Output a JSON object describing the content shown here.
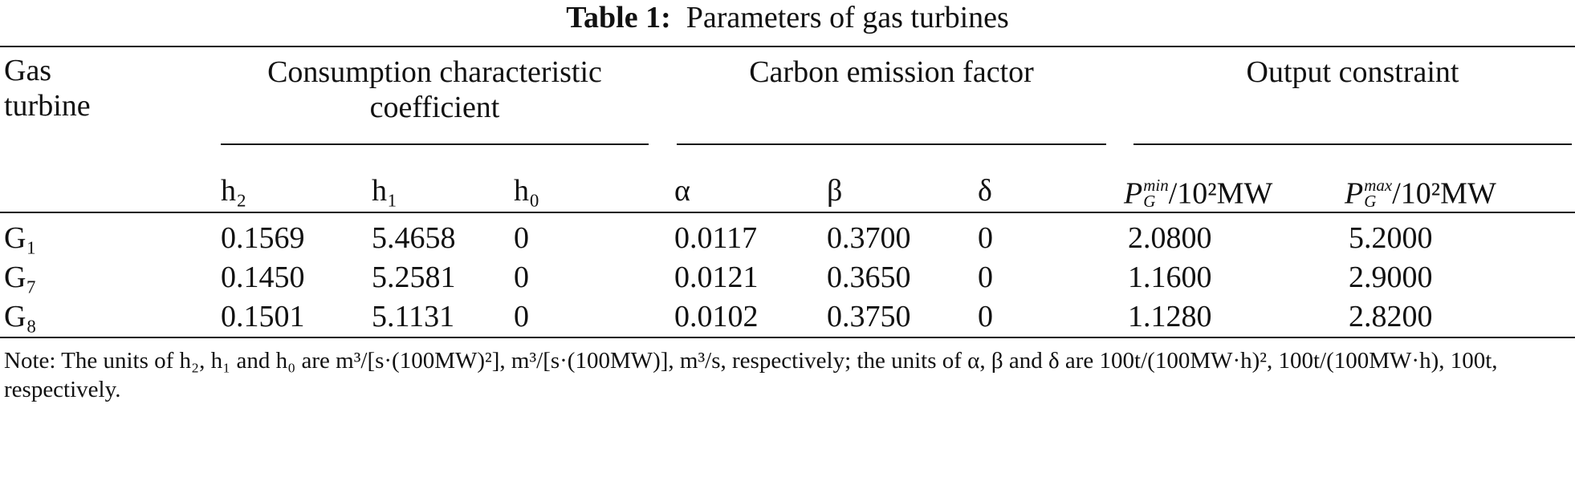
{
  "title": {
    "label": "Table 1:",
    "text": "Parameters of gas turbines"
  },
  "table": {
    "row_header": "Gas turbine",
    "groups": [
      "Consumption characteristic coefficient",
      "Carbon emission factor",
      "Output constraint"
    ],
    "columns": [
      "h₂",
      "h₁",
      "h₀",
      "α",
      "β",
      "δ",
      {
        "base": "P",
        "sup": "min",
        "sub": "G",
        "rest": "/10²MW"
      },
      {
        "base": "P",
        "sup": "max",
        "sub": "G",
        "rest": "/10²MW"
      }
    ],
    "rows": [
      [
        "G₁",
        "0.1569",
        "5.4658",
        "0",
        "0.0117",
        "0.3700",
        "0",
        "2.0800",
        "5.2000"
      ],
      [
        "G₇",
        "0.1450",
        "5.2581",
        "0",
        "0.0121",
        "0.3650",
        "0",
        "1.1600",
        "2.9000"
      ],
      [
        "G₈",
        "0.1501",
        "5.1131",
        "0",
        "0.0102",
        "0.3750",
        "0",
        "1.1280",
        "2.8200"
      ]
    ]
  },
  "note": "Note: The units of h₂, h₁ and h₀ are m³/[s·(100MW)²], m³/[s·(100MW)], m³/s, respectively; the units of α, β and δ are 100t/(100MW·h)², 100t/(100MW·h), 100t, respectively."
}
